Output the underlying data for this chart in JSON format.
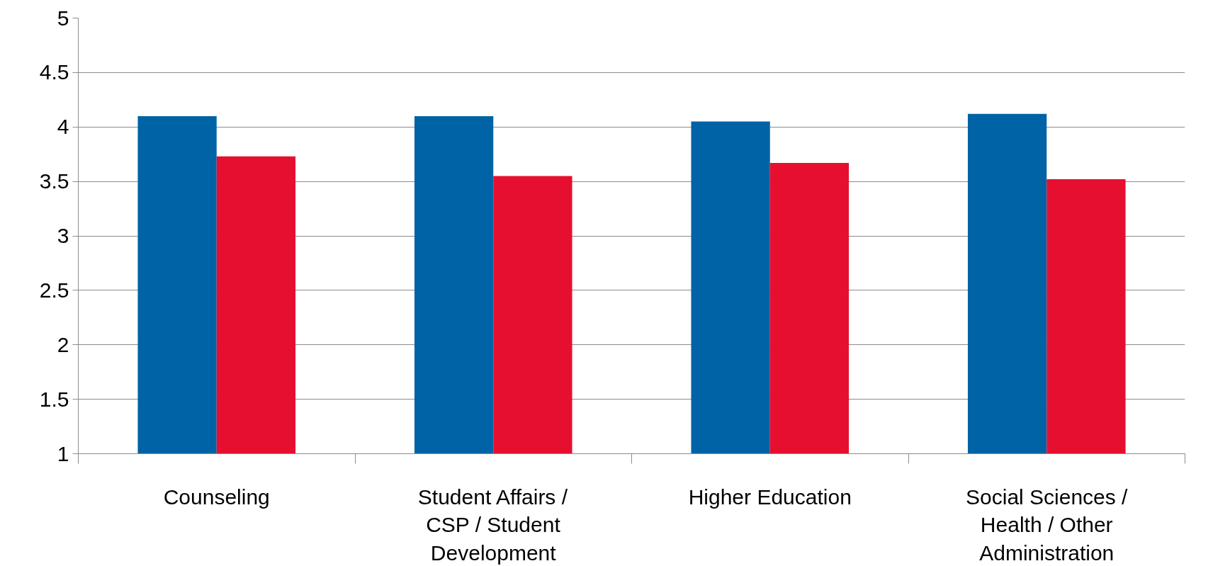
{
  "chart_data": {
    "type": "bar",
    "categories": [
      "Counseling",
      "Student Affairs / CSP / Student Development",
      "Higher Education",
      "Social Sciences / Health / Other Administration"
    ],
    "series": [
      {
        "color": "#0063a6",
        "values": [
          4.1,
          4.1,
          4.05,
          4.12
        ]
      },
      {
        "color": "#e60f2f",
        "values": [
          3.73,
          3.55,
          3.67,
          3.52
        ]
      }
    ],
    "ylim": [
      1,
      5
    ],
    "yticks": [
      1,
      1.5,
      2,
      2.5,
      3,
      3.5,
      4,
      4.5,
      5
    ],
    "grid": "y"
  }
}
